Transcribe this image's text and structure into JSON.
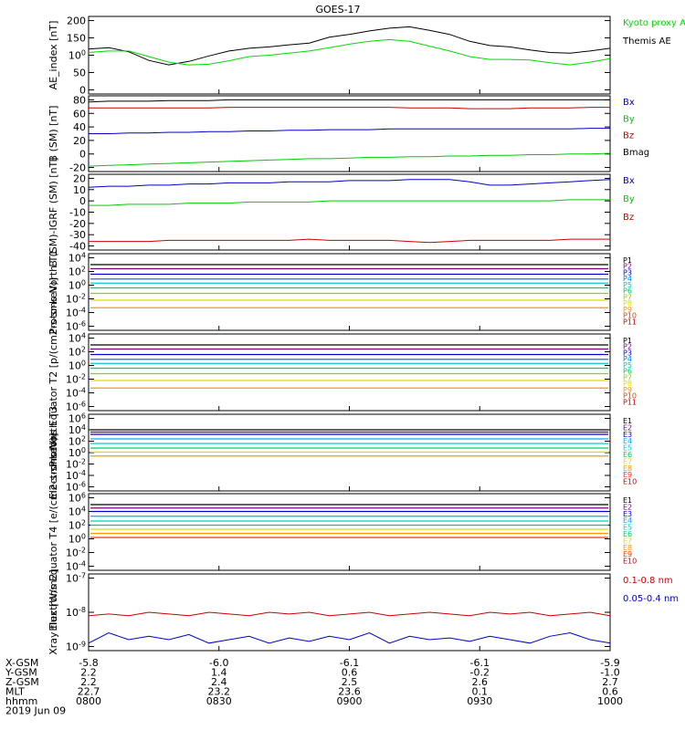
{
  "chart_data": {
    "type": "line",
    "title": "GOES-17",
    "time_ticks": [
      "0800",
      "0830",
      "0900",
      "0930",
      "1000"
    ],
    "panels": [
      {
        "ylabel": "AE_index [nT]",
        "yticks": [
          "0",
          "50",
          "100",
          "150",
          "200"
        ],
        "legend": [
          {
            "text": "Kyoto proxy AE",
            "color": "#00dd00"
          },
          {
            "text": "Themis AE",
            "color": "#000000"
          }
        ],
        "series": [
          {
            "name": "Themis AE",
            "color": "#000000",
            "values": [
              118,
              122,
              110,
              85,
              72,
              82,
              98,
              112,
              120,
              124,
              130,
              135,
              152,
              160,
              170,
              178,
              182,
              172,
              160,
              140,
              128,
              124,
              115,
              108,
              106,
              112,
              120
            ]
          },
          {
            "name": "Kyoto proxy AE",
            "color": "#00dd00",
            "values": [
              108,
              112,
              112,
              96,
              80,
              72,
              74,
              84,
              96,
              100,
              106,
              112,
              122,
              132,
              140,
              145,
              140,
              126,
              112,
              96,
              88,
              88,
              86,
              78,
              72,
              80,
              90
            ]
          }
        ]
      },
      {
        "ylabel": "B (SM) [nT]",
        "yticks": [
          "-20",
          "0",
          "20",
          "40",
          "60",
          "80"
        ],
        "legend": [
          {
            "text": "Bx",
            "color": "#0000cc"
          },
          {
            "text": "By",
            "color": "#00cc00"
          },
          {
            "text": "Bz",
            "color": "#cc0000"
          },
          {
            "text": "Bmag",
            "color": "#000000"
          }
        ],
        "series": [
          {
            "name": "Bmag",
            "color": "#000000",
            "values": [
              77,
              78,
              78,
              78,
              79,
              79,
              79,
              80,
              80,
              80,
              80,
              80,
              80,
              80,
              80,
              80,
              80,
              80,
              80,
              80,
              80,
              80,
              80,
              80,
              80,
              80,
              80
            ]
          },
          {
            "name": "Bz",
            "color": "#cc0000",
            "values": [
              68,
              68,
              68,
              68,
              68,
              68,
              68,
              69,
              69,
              69,
              69,
              69,
              69,
              69,
              69,
              69,
              68,
              68,
              68,
              67,
              67,
              67,
              68,
              68,
              68,
              69,
              69
            ]
          },
          {
            "name": "Bx",
            "color": "#0000cc",
            "values": [
              30,
              30,
              31,
              31,
              32,
              32,
              33,
              33,
              34,
              34,
              35,
              35,
              36,
              36,
              36,
              37,
              37,
              37,
              37,
              37,
              37,
              37,
              37,
              37,
              37,
              38,
              38
            ]
          },
          {
            "name": "By",
            "color": "#00cc00",
            "values": [
              -18,
              -17,
              -16,
              -15,
              -14,
              -13,
              -12,
              -11,
              -10,
              -9,
              -8,
              -7,
              -7,
              -6,
              -5,
              -5,
              -4,
              -4,
              -3,
              -3,
              -2,
              -2,
              -1,
              -1,
              0,
              0,
              1
            ]
          }
        ]
      },
      {
        "ylabel": "B (SM)-IGRF (SM) [nT]",
        "yticks": [
          "-40",
          "-30",
          "-20",
          "-10",
          "0",
          "10",
          "20"
        ],
        "legend": [
          {
            "text": "Bx",
            "color": "#0000cc"
          },
          {
            "text": "By",
            "color": "#00cc00"
          },
          {
            "text": "Bz",
            "color": "#cc0000"
          }
        ],
        "series": [
          {
            "name": "Bx",
            "color": "#0000cc",
            "values": [
              12,
              13,
              13,
              14,
              14,
              15,
              15,
              16,
              16,
              16,
              17,
              17,
              17,
              18,
              18,
              18,
              19,
              19,
              19,
              17,
              14,
              14,
              15,
              16,
              17,
              18,
              19
            ]
          },
          {
            "name": "By",
            "color": "#00cc00",
            "values": [
              -4,
              -4,
              -3,
              -3,
              -3,
              -2,
              -2,
              -2,
              -1,
              -1,
              -1,
              -1,
              0,
              0,
              0,
              0,
              0,
              0,
              0,
              0,
              0,
              0,
              0,
              0,
              1,
              1,
              1
            ]
          },
          {
            "name": "Bz",
            "color": "#cc0000",
            "values": [
              -36,
              -36,
              -36,
              -36,
              -35,
              -35,
              -35,
              -35,
              -35,
              -35,
              -35,
              -34,
              -35,
              -35,
              -35,
              -35,
              -36,
              -37,
              -36,
              -35,
              -35,
              -35,
              -35,
              -35,
              -34,
              -34,
              -34
            ]
          }
        ]
      },
      {
        "ylabel": "Protons North T1",
        "yticks": [
          "10-6",
          "10-4",
          "10-2",
          "100",
          "102",
          "104"
        ],
        "log": true,
        "legend": [
          {
            "text": "P1",
            "color": "#000000"
          },
          {
            "text": "P2",
            "color": "#770077"
          },
          {
            "text": "P3",
            "color": "#0000cc"
          },
          {
            "text": "P4",
            "color": "#0077ff"
          },
          {
            "text": "P5",
            "color": "#00cccc"
          },
          {
            "text": "P6",
            "color": "#00cc66"
          },
          {
            "text": "P7",
            "color": "#99cc00"
          },
          {
            "text": "P8",
            "color": "#dddd00"
          },
          {
            "text": "P9",
            "color": "#ff9900"
          },
          {
            "text": "P10",
            "color": "#ff3300"
          },
          {
            "text": "P11",
            "color": "#cc0000"
          }
        ],
        "levels": [
          3.0,
          2.4,
          1.6,
          0.9,
          0.3,
          -0.4,
          -1.2,
          -2.2,
          -3.3
        ]
      },
      {
        "ylabel": "Protons Equator T2 [p/(cm2-s-sr-keV)]",
        "yticks": [
          "10-6",
          "10-4",
          "10-2",
          "100",
          "102",
          "104"
        ],
        "log": true,
        "legend": [
          {
            "text": "P1",
            "color": "#000000"
          },
          {
            "text": "P2",
            "color": "#770077"
          },
          {
            "text": "P3",
            "color": "#0000cc"
          },
          {
            "text": "P4",
            "color": "#0077ff"
          },
          {
            "text": "P5",
            "color": "#00cccc"
          },
          {
            "text": "P6",
            "color": "#00cc66"
          },
          {
            "text": "P7",
            "color": "#99cc00"
          },
          {
            "text": "P8",
            "color": "#dddd00"
          },
          {
            "text": "P9",
            "color": "#ff9900"
          },
          {
            "text": "P10",
            "color": "#ff3300"
          },
          {
            "text": "P11",
            "color": "#cc0000"
          }
        ],
        "levels": [
          3.0,
          2.4,
          1.6,
          0.9,
          0.3,
          -0.4,
          -1.2,
          -2.2,
          -3.3
        ]
      },
      {
        "ylabel": "Electrons North T3",
        "yticks": [
          "10-6",
          "10-4",
          "10-2",
          "100",
          "102",
          "104",
          "106"
        ],
        "log": true,
        "legend": [
          {
            "text": "E1",
            "color": "#000000"
          },
          {
            "text": "E2",
            "color": "#770077"
          },
          {
            "text": "E3",
            "color": "#0000cc"
          },
          {
            "text": "E4",
            "color": "#00aaff"
          },
          {
            "text": "E5",
            "color": "#00cccc"
          },
          {
            "text": "E6",
            "color": "#00cc66"
          },
          {
            "text": "E7",
            "color": "#dddd00"
          },
          {
            "text": "E8",
            "color": "#ff9900"
          },
          {
            "text": "E9",
            "color": "#ff3300"
          },
          {
            "text": "E10",
            "color": "#cc0000"
          }
        ],
        "levels": [
          4.0,
          3.6,
          3.2,
          2.4,
          1.6,
          0.8,
          0.1,
          -0.6
        ]
      },
      {
        "ylabel": "Electrons Equator T4 [e/(cm2-s-sr-keV)]",
        "yticks": [
          "10-4",
          "10-2",
          "100",
          "102",
          "104",
          "106"
        ],
        "log": true,
        "legend": [
          {
            "text": "E1",
            "color": "#000000"
          },
          {
            "text": "E2",
            "color": "#770077"
          },
          {
            "text": "E3",
            "color": "#0000cc"
          },
          {
            "text": "E4",
            "color": "#00aaff"
          },
          {
            "text": "E5",
            "color": "#00cccc"
          },
          {
            "text": "E6",
            "color": "#00cc66"
          },
          {
            "text": "E7",
            "color": "#dddd00"
          },
          {
            "text": "E8",
            "color": "#ff9900"
          },
          {
            "text": "E9",
            "color": "#ff3300"
          },
          {
            "text": "E10",
            "color": "#cc0000"
          }
        ],
        "levels": [
          5.0,
          4.5,
          4.0,
          3.3,
          2.6,
          2.0,
          1.4,
          0.8,
          0.2
        ]
      },
      {
        "ylabel": "Xray flux [W/m2]",
        "yticks": [
          "10-9",
          "10-8",
          "10-7"
        ],
        "log": true,
        "legend": [
          {
            "text": "0.1-0.8 nm",
            "color": "#cc0000"
          },
          {
            "text": "0.05-0.4 nm",
            "color": "#0000cc"
          }
        ],
        "series": [
          {
            "name": "0.1-0.8 nm",
            "color": "#cc0000",
            "values": [
              -8.1,
              -8.05,
              -8.1,
              -8.0,
              -8.05,
              -8.1,
              -8.0,
              -8.05,
              -8.1,
              -8.0,
              -8.05,
              -8.0,
              -8.1,
              -8.05,
              -8.0,
              -8.1,
              -8.05,
              -8.0,
              -8.05,
              -8.1,
              -8.0,
              -8.05,
              -8.0,
              -8.1,
              -8.05,
              -8.0,
              -8.1
            ]
          },
          {
            "name": "0.05-0.4 nm",
            "color": "#0000cc",
            "values": [
              -8.9,
              -8.6,
              -8.8,
              -8.7,
              -8.8,
              -8.65,
              -8.9,
              -8.8,
              -8.7,
              -8.9,
              -8.75,
              -8.85,
              -8.7,
              -8.8,
              -8.6,
              -8.9,
              -8.7,
              -8.8,
              -8.75,
              -8.85,
              -8.7,
              -8.8,
              -8.9,
              -8.7,
              -8.6,
              -8.8,
              -8.9
            ]
          }
        ]
      }
    ],
    "footer": {
      "labels": [
        "X-GSM",
        "Y-GSM",
        "Z-GSM",
        "MLT",
        "hhmm",
        "2019 Jun 09"
      ],
      "rows": [
        [
          "-5.8",
          "-6.0",
          "-6.1",
          "-6.1",
          "-5.9"
        ],
        [
          "2.2",
          "1.4",
          "0.6",
          "-0.2",
          "-1.0"
        ],
        [
          "2.2",
          "2.4",
          "2.5",
          "2.6",
          "2.7"
        ],
        [
          "22.7",
          "23.2",
          "23.6",
          "0.1",
          "0.6"
        ],
        [
          "0800",
          "0830",
          "0900",
          "0930",
          "1000"
        ]
      ]
    }
  }
}
